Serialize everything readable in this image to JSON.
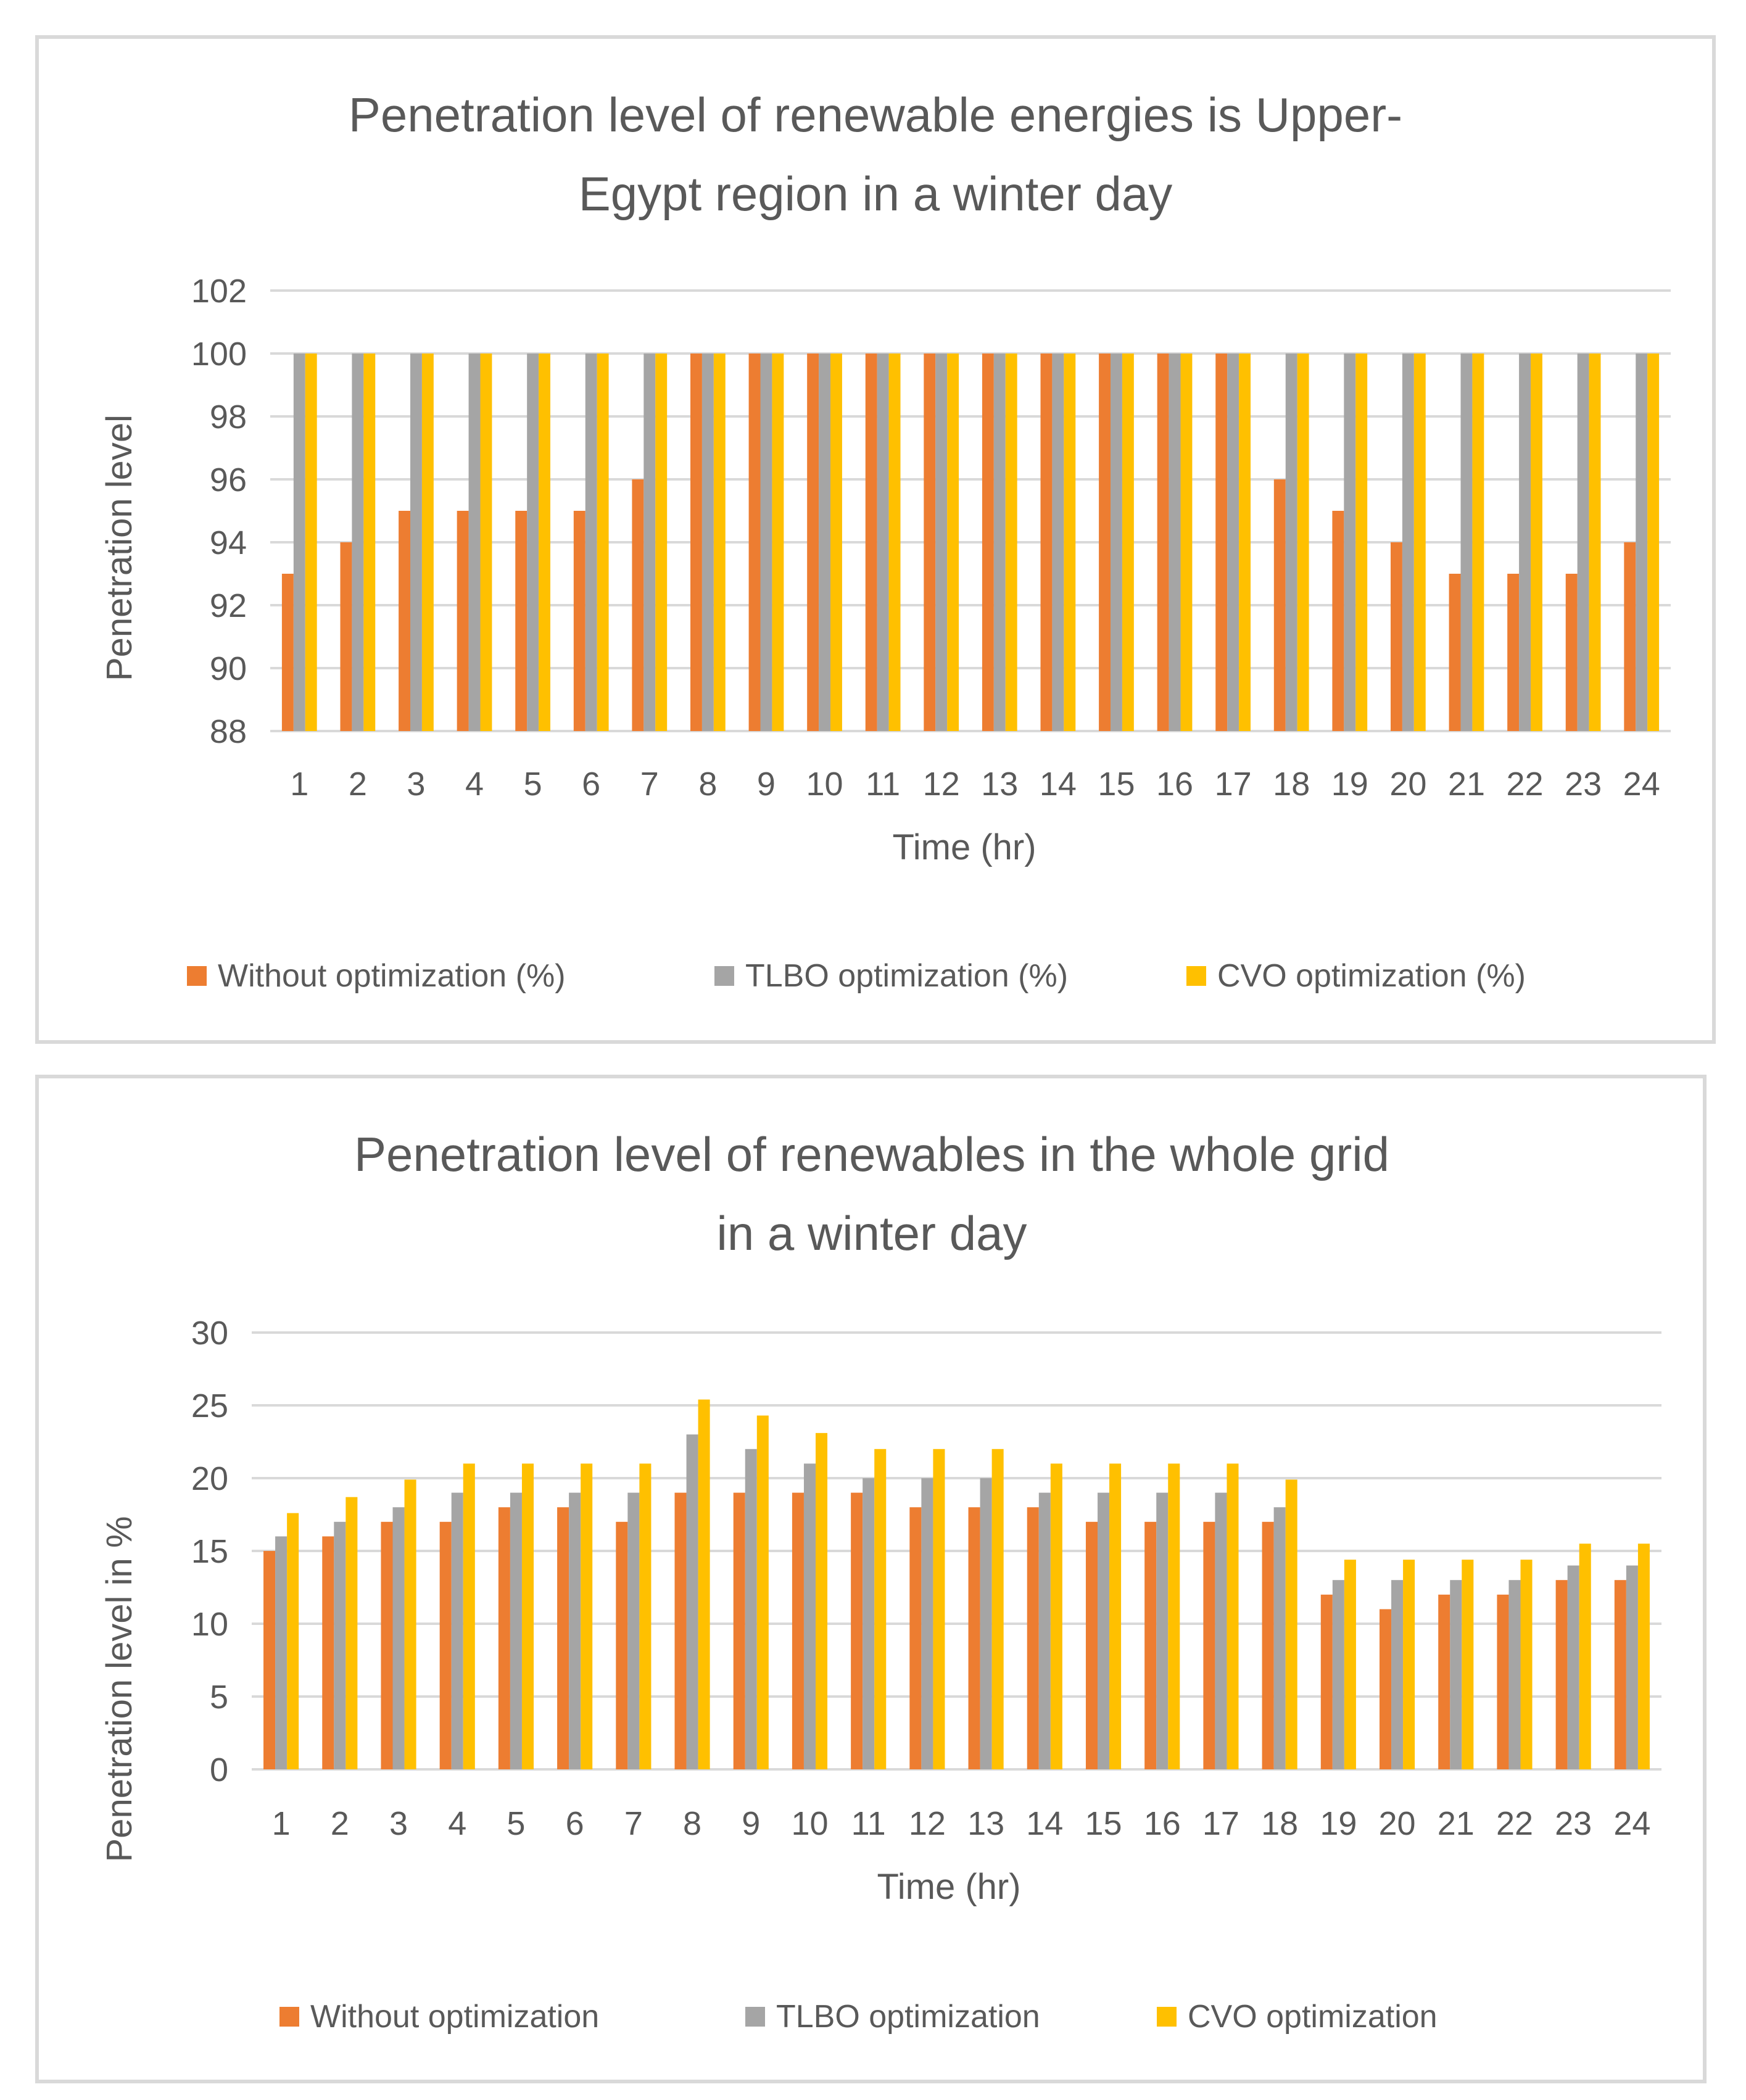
{
  "colors": {
    "without": "#ED7D31",
    "tlbo": "#A5A5A5",
    "cvo": "#FFC000",
    "grid": "#d9d9d9",
    "text": "#595959"
  },
  "chart_data": [
    {
      "type": "bar",
      "title_line1": "Penetration level of renewable energies is Upper-",
      "title_line2": "Egypt region in a winter day",
      "xlabel": "Time (hr)",
      "ylabel": "Penetration level",
      "ylim": [
        88,
        102
      ],
      "yticks": [
        88,
        90,
        92,
        94,
        96,
        98,
        100,
        102
      ],
      "categories": [
        "1",
        "2",
        "3",
        "4",
        "5",
        "6",
        "7",
        "8",
        "9",
        "10",
        "11",
        "12",
        "13",
        "14",
        "15",
        "16",
        "17",
        "18",
        "19",
        "20",
        "21",
        "22",
        "23",
        "24"
      ],
      "series": [
        {
          "name": "Without optimization (%)",
          "color_key": "without",
          "values": [
            93,
            94,
            95,
            95,
            95,
            95,
            96,
            100,
            100,
            100,
            100,
            100,
            100,
            100,
            100,
            100,
            100,
            96,
            95,
            94,
            93,
            93,
            93,
            94
          ]
        },
        {
          "name": "TLBO optimization (%)",
          "color_key": "tlbo",
          "values": [
            100,
            100,
            100,
            100,
            100,
            100,
            100,
            100,
            100,
            100,
            100,
            100,
            100,
            100,
            100,
            100,
            100,
            100,
            100,
            100,
            100,
            100,
            100,
            100
          ]
        },
        {
          "name": "CVO optimization (%)",
          "color_key": "cvo",
          "values": [
            100,
            100,
            100,
            100,
            100,
            100,
            100,
            100,
            100,
            100,
            100,
            100,
            100,
            100,
            100,
            100,
            100,
            100,
            100,
            100,
            100,
            100,
            100,
            100
          ]
        }
      ],
      "legend_position": "bottom"
    },
    {
      "type": "bar",
      "title_line1": "Penetration level of renewables in the whole grid",
      "title_line2": "in a winter day",
      "xlabel": "Time (hr)",
      "ylabel": "Penetration level in %",
      "ylim": [
        0,
        30
      ],
      "yticks": [
        0,
        5,
        10,
        15,
        20,
        25,
        30
      ],
      "categories": [
        "1",
        "2",
        "3",
        "4",
        "5",
        "6",
        "7",
        "8",
        "9",
        "10",
        "11",
        "12",
        "13",
        "14",
        "15",
        "16",
        "17",
        "18",
        "19",
        "20",
        "21",
        "22",
        "23",
        "24"
      ],
      "series": [
        {
          "name": "Without optimization",
          "color_key": "without",
          "values": [
            15,
            16,
            17,
            17,
            18,
            18,
            17,
            19,
            19,
            19,
            19,
            18,
            18,
            18,
            17,
            17,
            17,
            17,
            12,
            11,
            12,
            12,
            13,
            13
          ]
        },
        {
          "name": "TLBO optimization",
          "color_key": "tlbo",
          "values": [
            16,
            17,
            18,
            19,
            19,
            19,
            19,
            23,
            22,
            21,
            20,
            20,
            20,
            19,
            19,
            19,
            19,
            18,
            13,
            13,
            13,
            13,
            14,
            14
          ]
        },
        {
          "name": "CVO optimization",
          "color_key": "cvo",
          "values": [
            17.6,
            18.7,
            19.9,
            21,
            21,
            21,
            21,
            25.4,
            24.3,
            23.1,
            22,
            22,
            22,
            21,
            21,
            21,
            21,
            19.9,
            14.4,
            14.4,
            14.4,
            14.4,
            15.5,
            15.5
          ]
        }
      ],
      "legend_position": "bottom"
    }
  ]
}
